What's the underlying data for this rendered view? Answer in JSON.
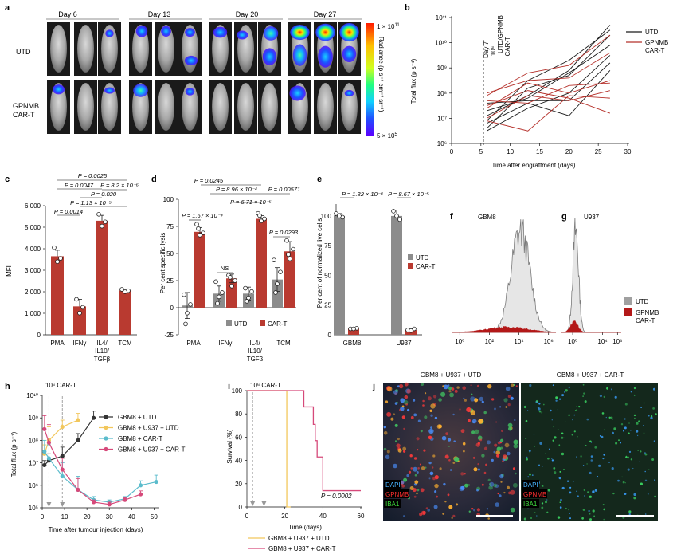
{
  "panels": {
    "a": {
      "letter": "a",
      "days": [
        "Day 6",
        "Day 13",
        "Day 20",
        "Day 27"
      ],
      "rows": [
        "UTD",
        "GPNMB",
        "CAR-T"
      ],
      "colorbar_max": "1 × 10",
      "colorbar_max_exp": "11",
      "colorbar_min": "5 × 10",
      "colorbar_min_exp": "5",
      "colorbar_label": "Radiance (p s⁻¹ cm⁻² sr⁻¹)"
    },
    "b": {
      "letter": "b",
      "annotation_lines": [
        "Day 7",
        "10⁶",
        "UTD/GPNMB",
        "CAR-T"
      ],
      "ylabel": "Total flux (p s⁻¹)",
      "xlabel": "Time after engraftment (days)",
      "legend": [
        "UTD",
        "GPNMB",
        "CAR-T"
      ]
    },
    "c": {
      "letter": "c",
      "ylabel": "MFI",
      "pvalues": [
        "P = 0.0025",
        "P = 0.0047",
        "P = 8.2 × 10⁻⁶",
        "P = 0.020",
        "P = 1.13 × 10⁻⁵",
        "P = 0.0014"
      ],
      "xticks": [
        "PMA",
        "IFNγ",
        "IL4/",
        "IL10/",
        "TGFβ",
        "TCM"
      ]
    },
    "d": {
      "letter": "d",
      "ylabel": "Per cent specific lysis",
      "pvalues": [
        "P = 0.0245",
        "P = 8.96 × 10⁻⁴",
        "P = 0.00571",
        "P = 6.71 × 10⁻⁵",
        "P = 1.67 × 10⁻⁴",
        "P = 0.0293",
        "NS"
      ],
      "legend": [
        "UTD",
        "CAR-T"
      ],
      "xticks": [
        "PMA",
        "IFNγ",
        "IL4/",
        "IL10/",
        "TGFβ",
        "TCM"
      ]
    },
    "e": {
      "letter": "e",
      "ylabel": "Per cent of normalized live cells",
      "pvalues": [
        "P = 1.32 × 10⁻⁴",
        "P = 8.67 × 10⁻⁵"
      ],
      "legend": [
        "UTD",
        "CAR-T"
      ],
      "xticks": [
        "GBM8",
        "U937"
      ]
    },
    "f": {
      "letter": "f",
      "title": "GBM8"
    },
    "g": {
      "letter": "g",
      "title": "U937",
      "legend": [
        "UTD",
        "GPNMB",
        "CAR-T"
      ]
    },
    "h": {
      "letter": "h",
      "annotation": "10⁶ CAR-T",
      "ylabel": "Total flux (p s⁻¹)",
      "xlabel": "Time after tumour injection (days)",
      "legend": [
        "GBM8 + UTD",
        "GBM8 + U937 + UTD",
        "GBM8 + CAR-T",
        "GBM8 + U937 + CAR-T"
      ]
    },
    "i": {
      "letter": "i",
      "annotation": "10⁶ CAR-T",
      "ylabel": "Survival (%)",
      "xlabel": "Time (days)",
      "pvalue": "P = 0.0002",
      "legend": [
        "GBM8 + U937 + UTD",
        "GBM8 + U937 + CAR-T"
      ]
    },
    "j": {
      "letter": "j",
      "titles": [
        "GBM8 + U937 + UTD",
        "GBM8 + U937 + CAR-T"
      ],
      "stains": [
        "DAPI",
        "GPNMB",
        "IBA1"
      ]
    }
  },
  "colors": {
    "utd_black": "#1a1a1a",
    "cart_red": "#b5302a",
    "bar_red": "#b93a30",
    "bar_grey": "#8c8c8c",
    "h_black": "#333333",
    "h_yellow": "#f2c75c",
    "h_cyan": "#5bbccc",
    "h_pink": "#d6497a",
    "i_yellow": "#f2c75c",
    "i_pink": "#d6497a"
  },
  "chart_data": [
    {
      "panel": "b",
      "type": "line",
      "ylabel": "Total flux (p s⁻¹)",
      "xlabel": "Time after engraftment (days)",
      "xlim": [
        0,
        30
      ],
      "ylim_log10": [
        6,
        11
      ],
      "xticks": [
        0,
        5,
        10,
        15,
        20,
        25,
        30
      ],
      "ytick_labels": [
        "10⁶",
        "10⁷",
        "10⁸",
        "10⁹",
        "10¹⁰",
        "10¹¹"
      ],
      "x": [
        6,
        13,
        20,
        27
      ],
      "series": [
        {
          "name": "UTD",
          "group": "UTD",
          "log10_values": [
            7.1,
            7.9,
            8.9,
            10.7
          ]
        },
        {
          "name": "UTD",
          "group": "UTD",
          "log10_values": [
            6.9,
            8.5,
            9.3,
            10.5
          ]
        },
        {
          "name": "UTD",
          "group": "UTD",
          "log10_values": [
            6.6,
            8.2,
            8.7,
            10.3
          ]
        },
        {
          "name": "UTD",
          "group": "UTD",
          "log10_values": [
            7.3,
            7.8,
            8.8,
            9.9
          ]
        },
        {
          "name": "UTD",
          "group": "UTD",
          "log10_values": [
            6.5,
            7.4,
            8.0,
            9.5
          ]
        },
        {
          "name": "UTD",
          "group": "UTD",
          "log10_values": [
            7.6,
            7.7,
            7.7,
            9.2
          ]
        },
        {
          "name": "UTD",
          "group": "UTD",
          "log10_values": [
            6.8,
            7.6,
            7.1,
            8.9
          ]
        },
        {
          "name": "GPNMB CAR-T",
          "group": "CAR-T",
          "log10_values": [
            7.9,
            8.8,
            9.1,
            10.3
          ]
        },
        {
          "name": "GPNMB CAR-T",
          "group": "CAR-T",
          "log10_values": [
            8.0,
            8.5,
            8.6,
            9.6
          ]
        },
        {
          "name": "GPNMB CAR-T",
          "group": "CAR-T",
          "log10_values": [
            7.4,
            8.4,
            8.0,
            8.5
          ]
        },
        {
          "name": "GPNMB CAR-T",
          "group": "CAR-T",
          "log10_values": [
            7.7,
            7.6,
            8.3,
            8.4
          ]
        },
        {
          "name": "GPNMB CAR-T",
          "group": "CAR-T",
          "log10_values": [
            7.0,
            7.9,
            7.7,
            8.1
          ]
        },
        {
          "name": "GPNMB CAR-T",
          "group": "CAR-T",
          "log10_values": [
            7.5,
            8.1,
            7.8,
            7.2
          ]
        },
        {
          "name": "GPNMB CAR-T",
          "group": "CAR-T",
          "log10_values": [
            6.9,
            6.5,
            7.9,
            7.8
          ]
        }
      ]
    },
    {
      "panel": "c",
      "type": "bar",
      "ylabel": "MFI",
      "categories": [
        "PMA",
        "IFNγ",
        "IL4/IL10/TGFβ",
        "TCM"
      ],
      "values": [
        3650,
        1320,
        5300,
        2060
      ],
      "errors": [
        280,
        330,
        250,
        70
      ],
      "points": [
        [
          4050,
          3550,
          3400
        ],
        [
          1650,
          1280,
          1010
        ],
        [
          5600,
          5250,
          5050
        ],
        [
          2110,
          2050,
          2000
        ]
      ],
      "ylim": [
        0,
        6000
      ],
      "yticks": [
        0,
        1000,
        2000,
        3000,
        4000,
        5000,
        6000
      ],
      "ytick_labels": [
        "0",
        "1,000",
        "2,000",
        "3,000",
        "4,000",
        "5,000",
        "6,000"
      ]
    },
    {
      "panel": "d",
      "type": "bar",
      "ylabel": "Per cent specific lysis",
      "categories": [
        "PMA",
        "IFNγ",
        "IL4/IL10/TGFβ",
        "TCM"
      ],
      "series": [
        {
          "name": "UTD",
          "values": [
            2,
            13,
            13,
            26
          ],
          "errors": [
            12,
            7,
            6,
            11
          ],
          "points": [
            [
              12,
              3,
              -5,
              -15
            ],
            [
              24,
              14,
              10,
              4
            ],
            [
              18,
              15,
              9,
              6
            ],
            [
              44,
              33,
              22,
              14
            ]
          ]
        },
        {
          "name": "CAR-T",
          "values": [
            70,
            27,
            82,
            52
          ],
          "errors": [
            4,
            4,
            3,
            9
          ],
          "points": [
            [
              77,
              69,
              67,
              73
            ],
            [
              30,
              25,
              20,
              28
            ],
            [
              87,
              82,
              80,
              85
            ],
            [
              62,
              54,
              45,
              49
            ]
          ]
        }
      ],
      "ylim": [
        -25,
        100
      ],
      "yticks": [
        -25,
        0,
        25,
        50,
        75,
        100
      ]
    },
    {
      "panel": "e",
      "type": "bar",
      "ylabel": "Per cent of normalized live cells",
      "categories": [
        "GBM8",
        "U937"
      ],
      "series": [
        {
          "name": "UTD",
          "values": [
            100,
            100
          ],
          "errors": [
            2,
            5
          ],
          "points": [
            [
              102,
              99,
              100
            ],
            [
              104,
              97,
              100
            ]
          ]
        },
        {
          "name": "CAR-T",
          "values": [
            5,
            4
          ],
          "errors": [
            1,
            1.5
          ],
          "points": [
            [
              5,
              5.5,
              5
            ],
            [
              4,
              5,
              3.5
            ]
          ]
        }
      ],
      "ylim": [
        0,
        110
      ],
      "yticks": [
        0,
        25,
        50,
        75,
        100
      ]
    },
    {
      "panel": "f",
      "type": "area",
      "title": "GBM8",
      "x_log10_range": [
        -0.5,
        6.5
      ],
      "xtick_labels": [
        "10⁰",
        "10²",
        "10⁴",
        "10⁶"
      ],
      "series": [
        {
          "name": "UTD",
          "center_log10": 4.1,
          "width": 0.9,
          "peak": 1.0
        },
        {
          "name": "GPNMB CAR-T",
          "center_log10": 3.2,
          "width": 1.9,
          "peak": 0.05
        }
      ]
    },
    {
      "panel": "g",
      "type": "area",
      "title": "U937",
      "x_log10_range": [
        -1.5,
        6.5
      ],
      "xtick_labels": [
        "10⁰",
        "10⁴",
        "10⁶"
      ],
      "series": [
        {
          "name": "UTD",
          "center_log10": 0.4,
          "width": 0.55,
          "peak": 1.0
        },
        {
          "name": "GPNMB CAR-T",
          "center_log10": 0.2,
          "width": 0.7,
          "peak": 0.1
        }
      ]
    },
    {
      "panel": "h",
      "type": "line",
      "ylabel": "Total flux (p s⁻¹)",
      "xlabel": "Time after tumour injection (days)",
      "xlim": [
        0,
        52
      ],
      "xticks": [
        0,
        10,
        20,
        30,
        40,
        50
      ],
      "ylim_log10": [
        5,
        10
      ],
      "ytick_labels": [
        "10⁵",
        "10⁶",
        "10⁷",
        "10⁸",
        "10⁹",
        "10¹⁰"
      ],
      "series": [
        {
          "name": "GBM8 + UTD",
          "x": [
            1,
            3,
            9,
            16,
            23
          ],
          "log10_values": [
            6.9,
            7.1,
            7.3,
            8.0,
            9.0
          ],
          "err": [
            0.2,
            0.3,
            0.4,
            0.3,
            0.3
          ]
        },
        {
          "name": "GBM8 + U937 + UTD",
          "x": [
            1,
            3,
            9,
            16
          ],
          "log10_values": [
            7.4,
            8.0,
            8.6,
            8.9
          ],
          "err": [
            0.4,
            0.6,
            0.3,
            0.3
          ]
        },
        {
          "name": "GBM8 + CAR-T",
          "x": [
            1,
            3,
            9,
            16,
            23,
            30,
            37,
            44,
            51
          ],
          "log10_values": [
            7.5,
            7.2,
            6.4,
            5.8,
            5.35,
            5.25,
            5.4,
            6.0,
            6.15
          ],
          "err": [
            0.5,
            0.6,
            0.6,
            0.6,
            0.15,
            0.1,
            0.1,
            0.2,
            0.3
          ]
        },
        {
          "name": "GBM8 + U937 + CAR-T",
          "x": [
            1,
            3,
            9,
            16,
            23,
            30,
            37,
            44
          ],
          "log10_values": [
            8.5,
            7.9,
            6.7,
            5.8,
            5.25,
            5.15,
            5.35,
            5.6
          ],
          "err": [
            0.6,
            0.8,
            0.5,
            0.5,
            0.1,
            0.1,
            0.1,
            0.15
          ]
        }
      ],
      "markers_x": [
        3,
        9
      ]
    },
    {
      "panel": "i",
      "type": "line",
      "ylabel": "Survival (%)",
      "xlabel": "Time (days)",
      "xlim": [
        0,
        60
      ],
      "xticks": [
        0,
        20,
        40,
        60
      ],
      "ylim": [
        0,
        100
      ],
      "yticks": [
        0,
        20,
        40,
        60,
        80,
        100
      ],
      "series": [
        {
          "name": "GBM8 + U937 + UTD",
          "steps": [
            [
              0,
              100
            ],
            [
              21,
              100
            ],
            [
              21,
              0
            ],
            [
              23,
              0
            ]
          ]
        },
        {
          "name": "GBM8 + U937 + CAR-T",
          "steps": [
            [
              0,
              100
            ],
            [
              30,
              100
            ],
            [
              30,
              86
            ],
            [
              35,
              86
            ],
            [
              35,
              71
            ],
            [
              36,
              71
            ],
            [
              36,
              57
            ],
            [
              37,
              57
            ],
            [
              37,
              43
            ],
            [
              40,
              43
            ],
            [
              40,
              14
            ],
            [
              60,
              14
            ]
          ]
        }
      ],
      "markers_x": [
        3,
        9
      ]
    }
  ]
}
